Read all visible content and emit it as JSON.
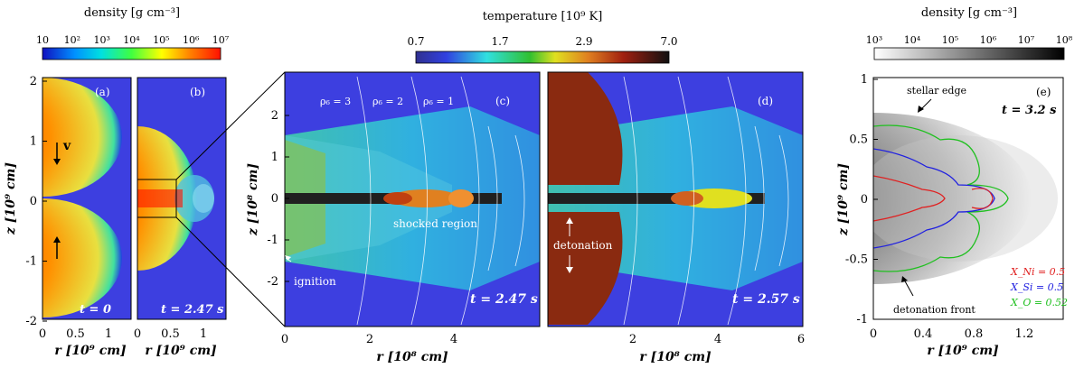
{
  "colorbars": {
    "left": {
      "title": "density [g cm⁻³]",
      "ticks": [
        "10",
        "10²",
        "10³",
        "10⁴",
        "10⁵",
        "10⁶",
        "10⁷"
      ]
    },
    "middle": {
      "title": "temperature [10⁹ K]",
      "ticks": [
        "0.7",
        "1.7",
        "2.9",
        "7.0"
      ]
    },
    "right": {
      "title": "density [g cm⁻³]",
      "ticks": [
        "10³",
        "10⁴",
        "10⁵",
        "10⁶",
        "10⁷",
        "10⁸"
      ]
    }
  },
  "panels": {
    "a": {
      "label": "(a)",
      "time": "t = 0",
      "arrow_label": "v"
    },
    "b": {
      "label": "(b)",
      "time": "t = 2.47 s"
    },
    "c": {
      "label": "(c)",
      "time": "t = 2.47 s",
      "rho": [
        "ρ₆ = 3",
        "ρ₆ = 2",
        "ρ₆ = 1"
      ],
      "ann_shocked": "shocked region",
      "ann_ignition": "ignition"
    },
    "d": {
      "label": "(d)",
      "time": "t = 2.57 s",
      "ann_detonation": "detonation"
    },
    "e": {
      "label": "(e)",
      "time": "t = 3.2 s",
      "ann_edge": "stellar edge",
      "ann_front": "detonation front",
      "legend": [
        {
          "text": "X_Ni = 0.5",
          "color": "#e02020"
        },
        {
          "text": "X_Si = 0.5",
          "color": "#2020e0"
        },
        {
          "text": "X_O = 0.52",
          "color": "#20c020"
        }
      ]
    }
  },
  "axes": {
    "ab_ylabel": "z [10⁹ cm]",
    "ab_yticks": [
      "2",
      "1",
      "0",
      "-1",
      "-2"
    ],
    "a_xticks": [
      "0",
      "0.5",
      "1"
    ],
    "b_xticks": [
      "0",
      "0.5",
      "1"
    ],
    "ab_xlabel": "r [10⁹ cm]",
    "c_ylabel": "z [10⁸ cm]",
    "c_yticks": [
      "2",
      "1",
      "0",
      "-1",
      "-2"
    ],
    "cd_xticks": [
      "0",
      "2",
      "4",
      "6"
    ],
    "c_xticks": [
      "0",
      "2",
      "4"
    ],
    "d_xticks": [
      "2",
      "4",
      "6"
    ],
    "cd_xlabel": "r [10⁸ cm]",
    "e_ylabel": "z [10⁹ cm]",
    "e_yticks": [
      "1",
      "0.5",
      "0",
      "-0.5",
      "-1"
    ],
    "e_xticks": [
      "0",
      "0.4",
      "0.8",
      "1.2"
    ],
    "e_xlabel": "r [10⁹ cm]"
  },
  "colors": {
    "bg_blue": "#3d3fe0",
    "hot_red": "#e03010",
    "det_brown": "#8a2a10"
  }
}
